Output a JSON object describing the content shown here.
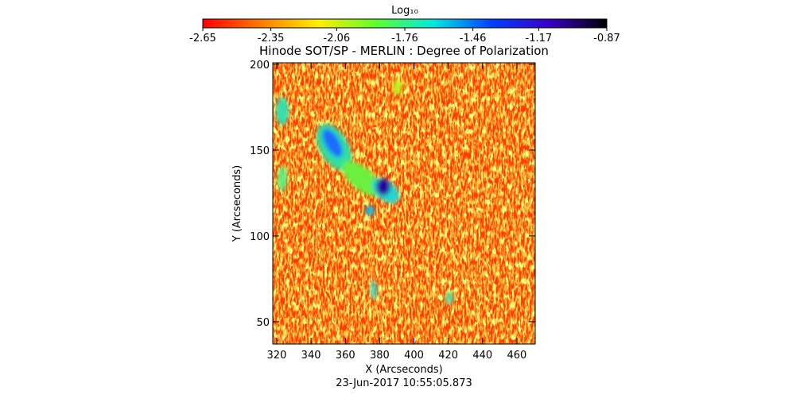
{
  "chart_data": {
    "type": "image",
    "title": "Hinode SOT/SP - MERLIN : Degree of Polarization",
    "x_label": "X (Arcseconds)",
    "y_label": "Y (Arcseconds)",
    "footnote": "23-Jun-2017 10:55:05.873",
    "xlim": [
      317.7,
      470.7
    ],
    "xticks": [
      320,
      340,
      360,
      380,
      400,
      420,
      440,
      460
    ],
    "ylim": [
      37,
      200.9
    ],
    "yticks": [
      50,
      100,
      150,
      200
    ],
    "colorbar": {
      "label": "Log₁₀",
      "clim": [
        -2.65,
        -0.87
      ],
      "ticks": [
        -2.65,
        -2.35,
        -2.06,
        -1.76,
        -1.46,
        -1.17,
        -0.87
      ],
      "colors": [
        "#ff0000",
        "#ff7a00",
        "#ffee00",
        "#5cff2e",
        "#00e8e0",
        "#0040ff",
        "#3a00c8",
        "#000000"
      ]
    }
  }
}
